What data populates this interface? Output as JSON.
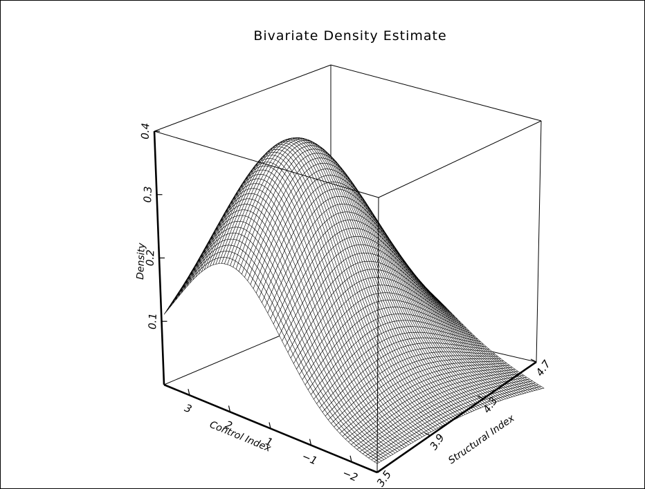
{
  "chart_data": {
    "type": "surface",
    "title": "Bivariate Density Estimate",
    "xlabel": "Control Index",
    "ylabel": "Structural Index",
    "zlabel": "Density",
    "x_ticks": [
      "3",
      "2",
      "1",
      "−1",
      "−2"
    ],
    "y_ticks": [
      "3.5",
      "3.9",
      "4.3",
      "4.7"
    ],
    "z_ticks": [
      "0.1",
      "0.2",
      "0.3",
      "0.4"
    ],
    "zlim": [
      0,
      0.4
    ],
    "peak_density": 0.38,
    "mesh": "black wireframe",
    "box": true
  }
}
